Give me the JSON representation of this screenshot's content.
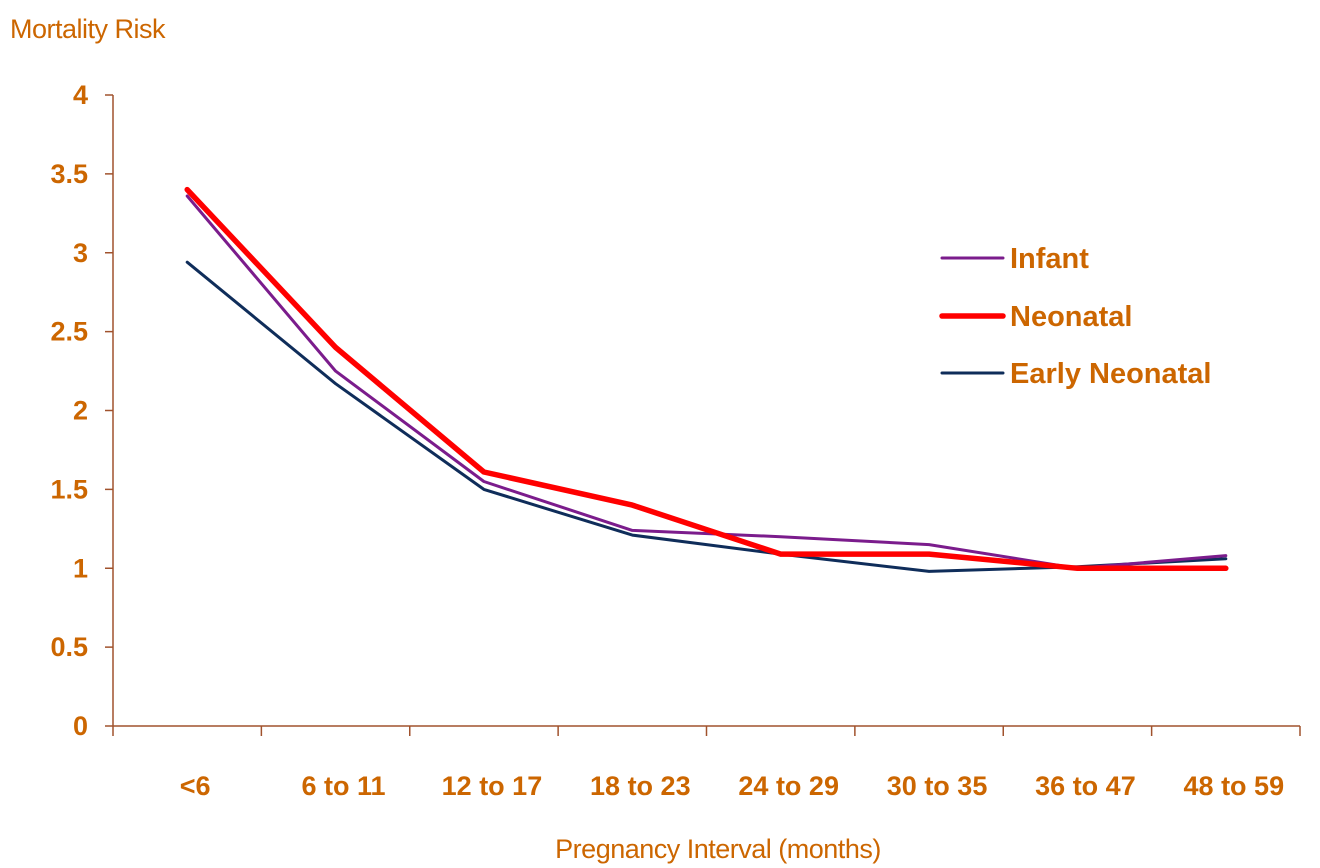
{
  "chart_data": {
    "type": "line",
    "ylabel": "Mortality Risk",
    "xlabel": "Pregnancy Interval (months)",
    "categories": [
      "<6",
      "6 to 11",
      "12 to 17",
      "18 to 23",
      "24 to 29",
      "30 to 35",
      "36 to 47",
      "48 to 59"
    ],
    "ylim": [
      0,
      4
    ],
    "yticks": [
      "0",
      "0.5",
      "1",
      "1.5",
      "2",
      "2.5",
      "3",
      "3.5",
      "4"
    ],
    "grid": false,
    "legend_position": "right",
    "series": [
      {
        "name": "Infant",
        "color": "#7b1c8c",
        "values": [
          3.36,
          2.25,
          1.55,
          1.24,
          1.2,
          1.15,
          1.0,
          1.08
        ]
      },
      {
        "name": "Neonatal",
        "color": "#ff0000",
        "values": [
          3.4,
          2.4,
          1.61,
          1.4,
          1.09,
          1.09,
          1.0,
          1.0
        ]
      },
      {
        "name": "Early Neonatal",
        "color": "#0f2d5a",
        "values": [
          2.94,
          2.17,
          1.5,
          1.21,
          1.09,
          0.98,
          1.01,
          1.06
        ]
      }
    ],
    "text_color": "#cc6600",
    "axis_color": "#a0522d"
  }
}
